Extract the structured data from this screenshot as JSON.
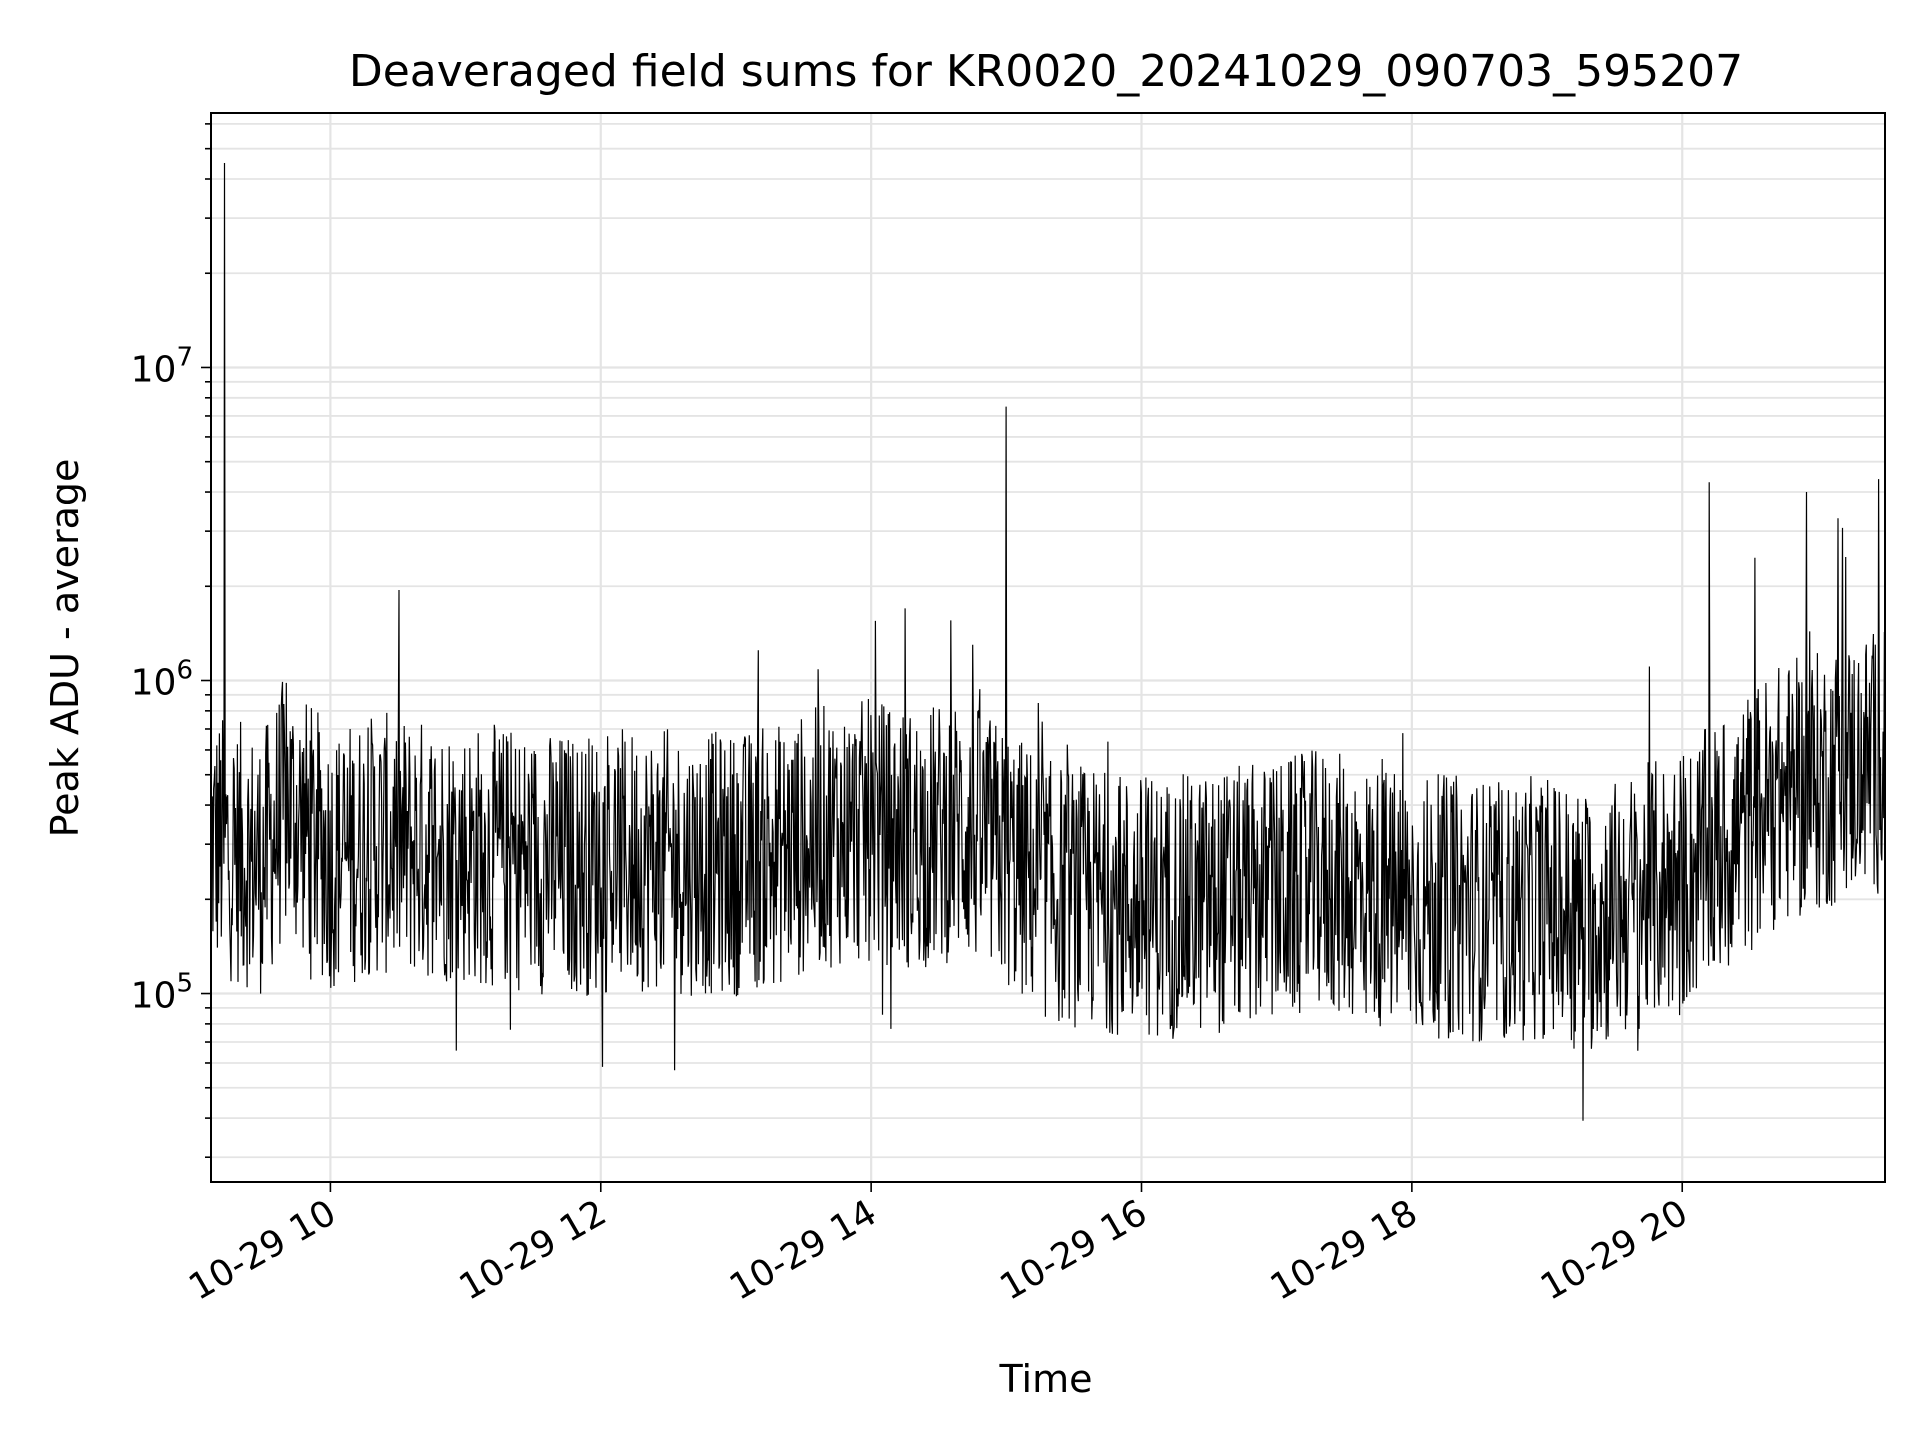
{
  "chart_data": {
    "type": "line",
    "title": "Deaveraged field sums for KR0020_20241029_090703_595207",
    "xlabel": "Time",
    "ylabel": "Peak ADU - average",
    "y_scale": "log",
    "ylim": [
      25000,
      65000000
    ],
    "xlim": [
      "2024-10-29 09:07",
      "2024-10-29 21:30"
    ],
    "x_ticks": [
      {
        "value": "2024-10-29 10:00",
        "label": "10-29 10"
      },
      {
        "value": "2024-10-29 12:00",
        "label": "10-29 12"
      },
      {
        "value": "2024-10-29 14:00",
        "label": "10-29 14"
      },
      {
        "value": "2024-10-29 16:00",
        "label": "10-29 16"
      },
      {
        "value": "2024-10-29 18:00",
        "label": "10-29 18"
      },
      {
        "value": "2024-10-29 20:00",
        "label": "10-29 20"
      }
    ],
    "y_ticks": [
      {
        "value": 100000,
        "base": "10",
        "exp": "5"
      },
      {
        "value": 1000000,
        "base": "10",
        "exp": "6"
      },
      {
        "value": 10000000,
        "base": "10",
        "exp": "7"
      }
    ],
    "grid": true,
    "line_color": "#000000",
    "series": [
      {
        "x": [
          "2024-10-29 09:10",
          "2024-10-29 09:20",
          "2024-10-29 09:30",
          "2024-10-29 09:40",
          "2024-10-29 10:00",
          "2024-10-29 10:20",
          "2024-10-29 10:40",
          "2024-10-29 11:00",
          "2024-10-29 11:20",
          "2024-10-29 11:40",
          "2024-10-29 12:00",
          "2024-10-29 12:20",
          "2024-10-29 12:40",
          "2024-10-29 13:00",
          "2024-10-29 13:20",
          "2024-10-29 13:40",
          "2024-10-29 14:00",
          "2024-10-29 14:20",
          "2024-10-29 14:40",
          "2024-10-29 15:00",
          "2024-10-29 15:20",
          "2024-10-29 15:40",
          "2024-10-29 16:00",
          "2024-10-29 16:20",
          "2024-10-29 16:40",
          "2024-10-29 17:00",
          "2024-10-29 17:20",
          "2024-10-29 17:40",
          "2024-10-29 18:00",
          "2024-10-29 18:20",
          "2024-10-29 18:40",
          "2024-10-29 19:00",
          "2024-10-29 19:20",
          "2024-10-29 19:40",
          "2024-10-29 20:00",
          "2024-10-29 20:20",
          "2024-10-29 20:40",
          "2024-10-29 21:00",
          "2024-10-29 21:20"
        ],
        "y": [
          300000,
          280000,
          260000,
          400000,
          270000,
          300000,
          290000,
          280000,
          270000,
          260000,
          260000,
          270000,
          260000,
          260000,
          280000,
          320000,
          330000,
          310000,
          340000,
          270000,
          210000,
          200000,
          190000,
          190000,
          200000,
          210000,
          230000,
          210000,
          190000,
          190000,
          180000,
          190000,
          170000,
          200000,
          230000,
          300000,
          420000,
          470000,
          550000
        ]
      }
    ],
    "spikes": [
      {
        "x": "2024-10-29 09:13",
        "y": 45000000
      },
      {
        "x": "2024-10-29 15:00",
        "y": 7500000
      },
      {
        "x": "2024-10-29 20:12",
        "y": 4300000
      },
      {
        "x": "2024-10-29 20:55",
        "y": 4000000
      },
      {
        "x": "2024-10-29 21:09",
        "y": 3300000
      },
      {
        "x": "2024-10-29 21:27",
        "y": 4400000
      },
      {
        "x": "2024-10-29 14:15",
        "y": 1700000
      },
      {
        "x": "2024-10-29 14:02",
        "y": 1550000
      },
      {
        "x": "2024-10-29 14:45",
        "y": 1300000
      },
      {
        "x": "2024-10-29 13:10",
        "y": 1250000
      }
    ]
  }
}
